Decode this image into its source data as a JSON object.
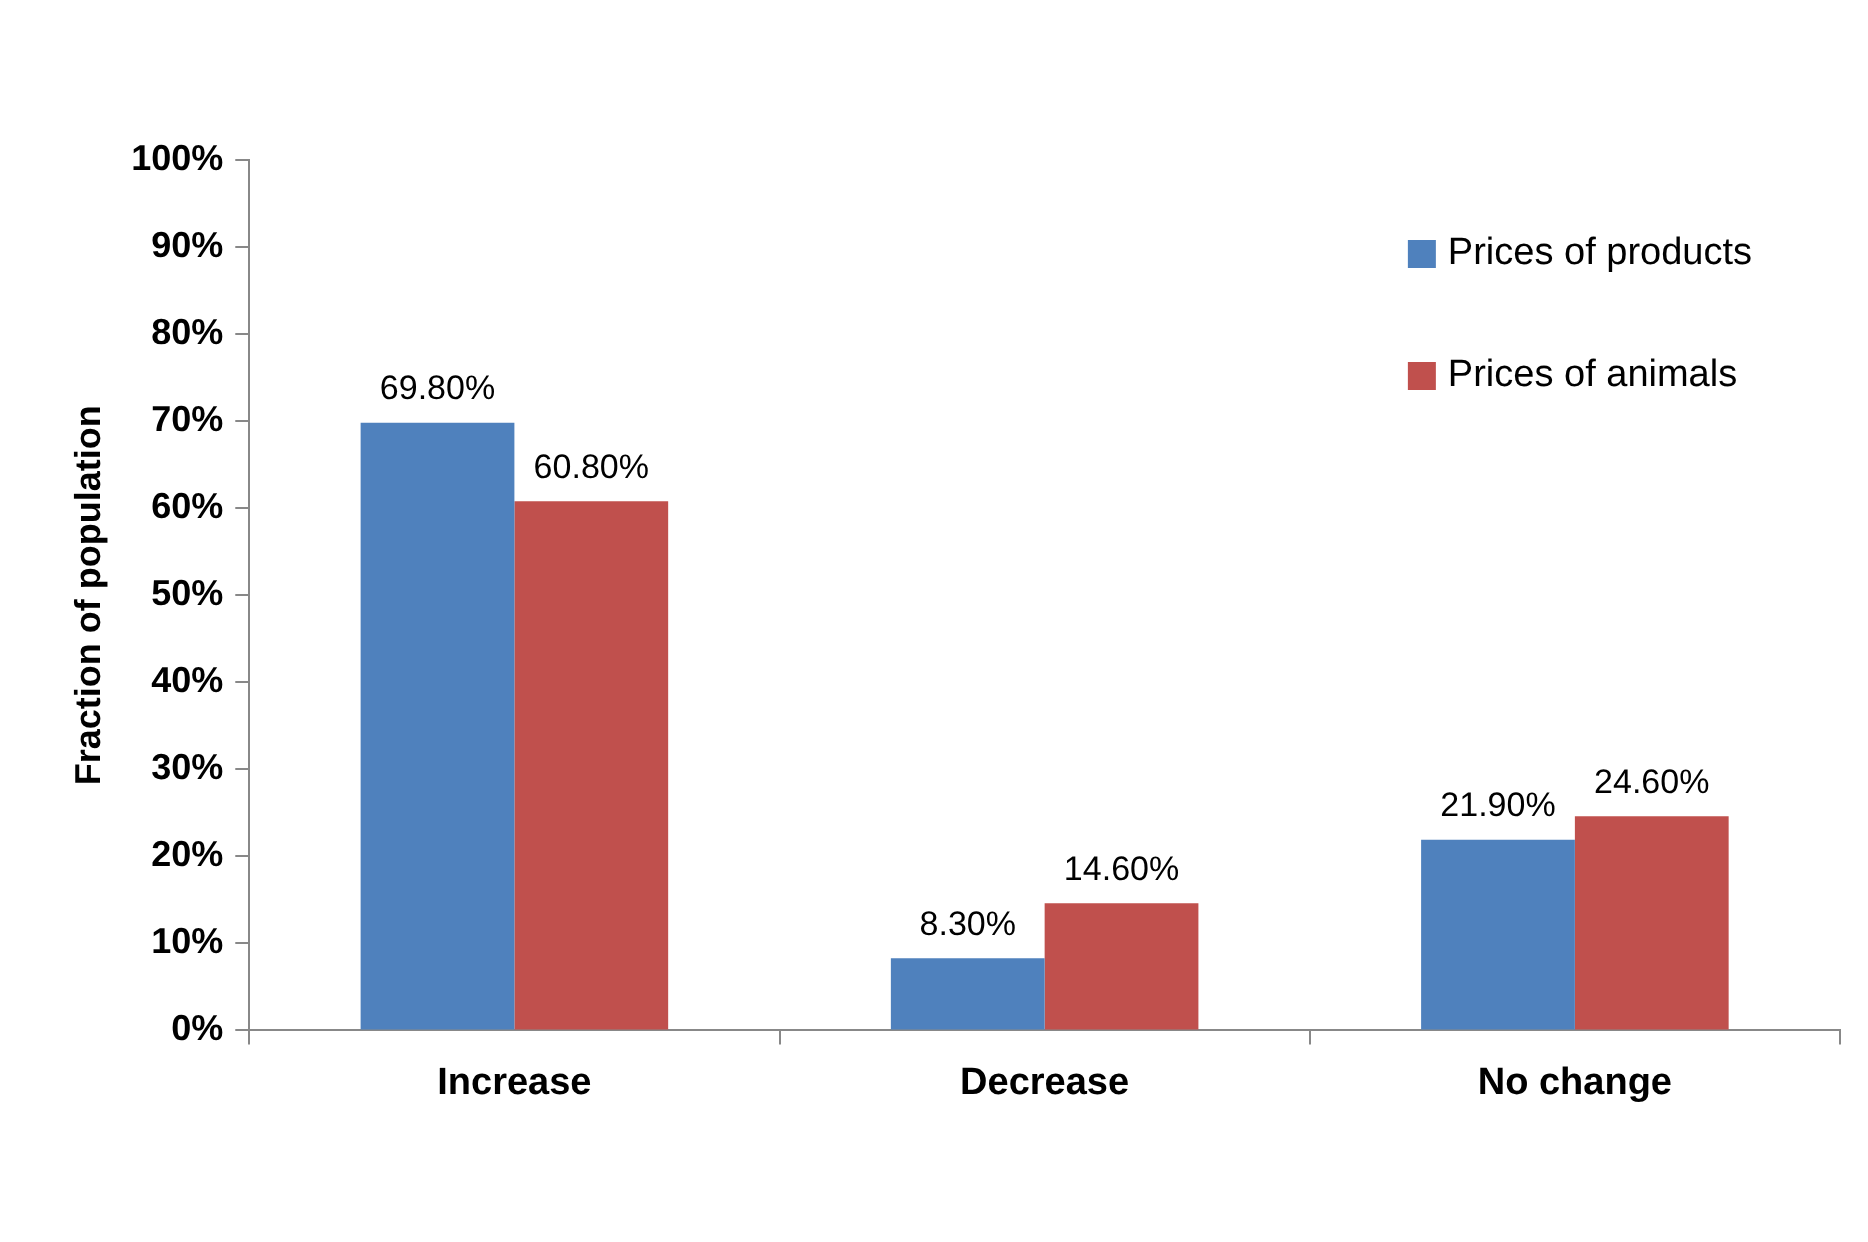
{
  "chart_data": {
    "type": "bar",
    "ylabel": "Fraction of population",
    "categories": [
      "Increase",
      "Decrease",
      "No change"
    ],
    "series": [
      {
        "name": "Prices of products",
        "color": "#4f81bd",
        "values": [
          69.8,
          8.3,
          21.9
        ],
        "value_labels": [
          "69.80%",
          "8.30%",
          "21.90%"
        ]
      },
      {
        "name": "Prices of animals",
        "color": "#c0504d",
        "values": [
          60.8,
          14.6,
          24.6
        ],
        "value_labels": [
          "60.80%",
          "14.60%",
          "24.60%"
        ]
      }
    ],
    "ylim": [
      0,
      100
    ],
    "yticks": [
      {
        "value": 0,
        "label": "0%"
      },
      {
        "value": 10,
        "label": "10%"
      },
      {
        "value": 20,
        "label": "20%"
      },
      {
        "value": 30,
        "label": "30%"
      },
      {
        "value": 40,
        "label": "40%"
      },
      {
        "value": 50,
        "label": "50%"
      },
      {
        "value": 60,
        "label": "60%"
      },
      {
        "value": 70,
        "label": "70%"
      },
      {
        "value": 80,
        "label": "80%"
      },
      {
        "value": 90,
        "label": "90%"
      },
      {
        "value": 100,
        "label": "100%"
      }
    ],
    "grid": false,
    "legend": "top right"
  }
}
